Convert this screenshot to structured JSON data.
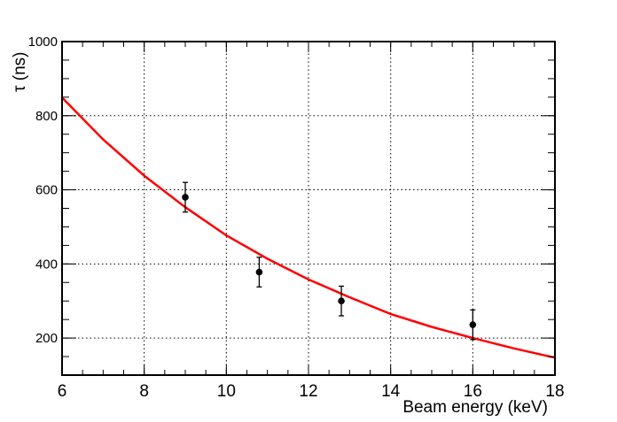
{
  "chart_data": {
    "type": "scatter",
    "title": "",
    "xlabel": "Beam energy (keV)",
    "ylabel": "τ (ns)",
    "xlim": [
      6,
      18
    ],
    "ylim": [
      100,
      1000
    ],
    "x_ticks": [
      6,
      8,
      10,
      12,
      14,
      16,
      18
    ],
    "y_ticks": [
      200,
      400,
      600,
      800,
      1000
    ],
    "grid": true,
    "legend": "none",
    "series": [
      {
        "kind": "points_with_errors",
        "color": "#000000",
        "x": [
          9,
          10.8,
          12.8,
          16
        ],
        "y": [
          580,
          378,
          300,
          236
        ],
        "yerr": [
          40,
          40,
          40,
          40
        ]
      },
      {
        "kind": "fit_curve",
        "color": "#ff0000",
        "x": [
          6,
          7,
          8,
          9,
          10,
          11,
          12,
          13,
          14,
          15,
          16,
          17,
          18
        ],
        "y": [
          849,
          736,
          638,
          553,
          477,
          414,
          358,
          310,
          265,
          230,
          200,
          172,
          147
        ]
      }
    ]
  }
}
